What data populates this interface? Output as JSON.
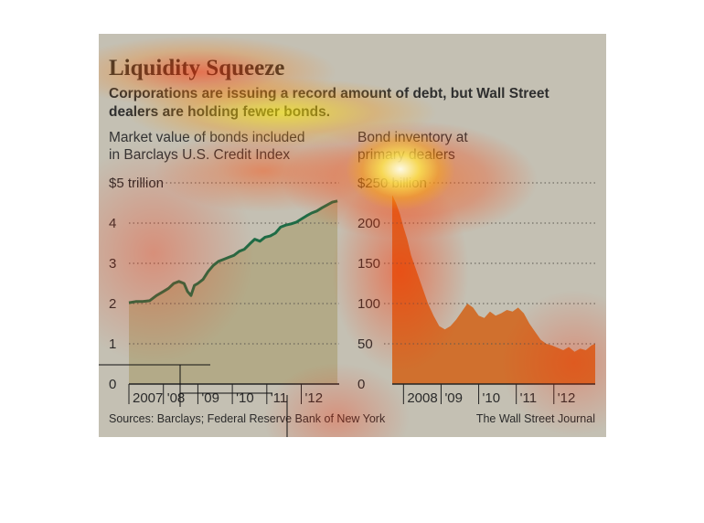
{
  "title": "Liquidity Squeeze",
  "subtitle": "Corporations are issuing a record amount of debt, but Wall Street dealers are holding fewer bonds.",
  "source": "Sources: Barclays; Federal Reserve Bank of New York",
  "credit": "The Wall Street Journal",
  "chart_data": [
    {
      "type": "area",
      "title": "Market value of bonds included in Barclays U.S. Credit Index",
      "title_lines": [
        "Market value of bonds included",
        "in Barclays U.S. Credit Index"
      ],
      "ylim": [
        0,
        5
      ],
      "yticks": [
        0,
        1,
        2,
        3,
        4,
        5
      ],
      "ytick_labels": [
        "0",
        "1",
        "2",
        "3",
        "4",
        "$5 trillion"
      ],
      "xlim": [
        2007.0,
        2013.1
      ],
      "xticks": [
        2007,
        2008,
        2009,
        2010,
        2011,
        2012
      ],
      "xtick_labels": [
        "2007",
        "'08",
        "'09",
        "'10",
        "'11",
        "'12"
      ],
      "color": "#1e6b45",
      "fill": "#b3aa88",
      "grid": true,
      "series": [
        {
          "x": [
            2007.0,
            2007.2,
            2007.4,
            2007.6,
            2007.8,
            2008.0,
            2008.15,
            2008.3,
            2008.45,
            2008.6,
            2008.7,
            2008.8,
            2008.9,
            2009.0,
            2009.15,
            2009.3,
            2009.45,
            2009.6,
            2009.75,
            2009.9,
            2010.05,
            2010.2,
            2010.35,
            2010.5,
            2010.65,
            2010.8,
            2010.95,
            2011.1,
            2011.25,
            2011.4,
            2011.55,
            2011.7,
            2011.85,
            2012.0,
            2012.15,
            2012.3,
            2012.45,
            2012.6,
            2012.75,
            2012.9,
            2013.05
          ],
          "y": [
            2.02,
            2.05,
            2.05,
            2.07,
            2.2,
            2.3,
            2.38,
            2.5,
            2.55,
            2.5,
            2.3,
            2.2,
            2.45,
            2.5,
            2.6,
            2.8,
            2.95,
            3.05,
            3.1,
            3.15,
            3.2,
            3.3,
            3.35,
            3.48,
            3.6,
            3.55,
            3.65,
            3.68,
            3.75,
            3.9,
            3.95,
            3.98,
            4.02,
            4.1,
            4.18,
            4.25,
            4.3,
            4.38,
            4.45,
            4.52,
            4.55
          ]
        }
      ]
    },
    {
      "type": "area",
      "title": "Bond inventory at primary dealers",
      "title_lines": [
        "Bond inventory at",
        "primary dealers"
      ],
      "ylim": [
        0,
        250
      ],
      "yticks": [
        0,
        50,
        100,
        150,
        200,
        250
      ],
      "ytick_labels": [
        "0",
        "50",
        "100",
        "150",
        "200",
        "$250 billion"
      ],
      "xlim": [
        2007.7,
        2013.1
      ],
      "xticks": [
        2008,
        2009,
        2010,
        2011,
        2012
      ],
      "xtick_labels": [
        "2008",
        "'09",
        "'10",
        "'11",
        "'12"
      ],
      "color": "#c8662a",
      "fill": "#d0702e",
      "grid": true,
      "series": [
        {
          "x": [
            2007.7,
            2007.8,
            2007.9,
            2008.0,
            2008.1,
            2008.2,
            2008.35,
            2008.5,
            2008.65,
            2008.8,
            2008.95,
            2009.1,
            2009.25,
            2009.4,
            2009.55,
            2009.7,
            2009.85,
            2010.0,
            2010.15,
            2010.3,
            2010.45,
            2010.6,
            2010.75,
            2010.9,
            2011.05,
            2011.2,
            2011.35,
            2011.5,
            2011.65,
            2011.8,
            2011.95,
            2012.1,
            2012.25,
            2012.4,
            2012.55,
            2012.7,
            2012.85,
            2013.0,
            2013.1
          ],
          "y": [
            235,
            225,
            212,
            195,
            180,
            160,
            140,
            120,
            100,
            85,
            72,
            68,
            72,
            80,
            90,
            100,
            95,
            85,
            82,
            90,
            85,
            88,
            92,
            90,
            95,
            88,
            75,
            65,
            55,
            50,
            48,
            45,
            42,
            46,
            40,
            44,
            42,
            48,
            50
          ]
        }
      ]
    }
  ]
}
